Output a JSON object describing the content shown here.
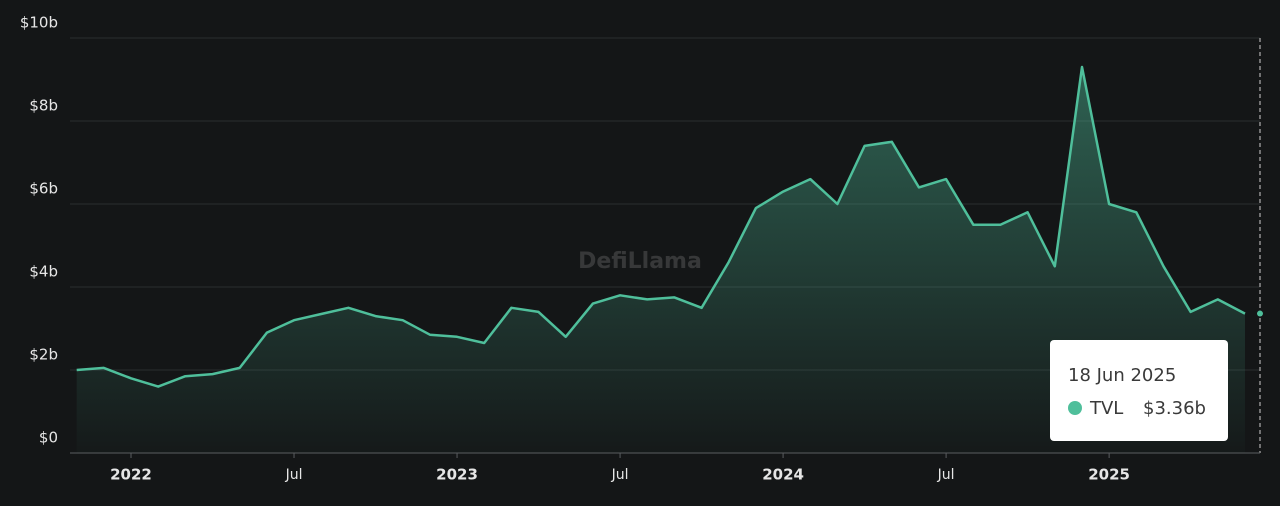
{
  "chart_data": {
    "type": "area",
    "watermark": "DefiLlama",
    "x": [
      "2021-11",
      "2021-12",
      "2022-01",
      "2022-02",
      "2022-03",
      "2022-04",
      "2022-05",
      "2022-06",
      "2022-07",
      "2022-08",
      "2022-09",
      "2022-10",
      "2022-11",
      "2022-12",
      "2023-01",
      "2023-02",
      "2023-03",
      "2023-04",
      "2023-05",
      "2023-06",
      "2023-07",
      "2023-08",
      "2023-09",
      "2023-10",
      "2023-11",
      "2023-12",
      "2024-01",
      "2024-02",
      "2024-03",
      "2024-04",
      "2024-05",
      "2024-06",
      "2024-07",
      "2024-08",
      "2024-09",
      "2024-10",
      "2024-11",
      "2024-12",
      "2025-01",
      "2025-02",
      "2025-03",
      "2025-04",
      "2025-05",
      "2025-06"
    ],
    "series": [
      {
        "name": "TVL",
        "color": "#4fbf9b",
        "values": [
          2.0,
          2.05,
          1.8,
          1.6,
          1.85,
          1.9,
          2.05,
          2.9,
          3.2,
          3.35,
          3.5,
          3.3,
          3.2,
          2.85,
          2.8,
          2.65,
          3.5,
          3.4,
          2.8,
          3.6,
          3.8,
          3.7,
          3.75,
          3.5,
          4.6,
          5.9,
          6.3,
          6.6,
          6.0,
          7.4,
          7.5,
          6.4,
          6.6,
          5.5,
          5.5,
          5.8,
          4.5,
          9.3,
          6.0,
          5.8,
          4.5,
          3.4,
          3.7,
          3.36
        ]
      }
    ],
    "xticks": [
      {
        "value": "2022-01",
        "label": "2022"
      },
      {
        "value": "2022-07",
        "label": "Jul"
      },
      {
        "value": "2023-01",
        "label": "2023"
      },
      {
        "value": "2023-07",
        "label": "Jul"
      },
      {
        "value": "2024-01",
        "label": "2024"
      },
      {
        "value": "2024-07",
        "label": "Jul"
      },
      {
        "value": "2025-01",
        "label": "2025"
      }
    ],
    "ylim": [
      0,
      10
    ],
    "yticks": [
      {
        "value": 0,
        "label": "$0"
      },
      {
        "value": 2,
        "label": "$2b"
      },
      {
        "value": 4,
        "label": "$4b"
      },
      {
        "value": 6,
        "label": "$6b"
      },
      {
        "value": 8,
        "label": "$8b"
      },
      {
        "value": 10,
        "label": "$10b"
      }
    ],
    "grid": true,
    "tooltip": {
      "date": "18 Jun 2025",
      "value": 3.36,
      "value_label": "$3.36b"
    }
  }
}
